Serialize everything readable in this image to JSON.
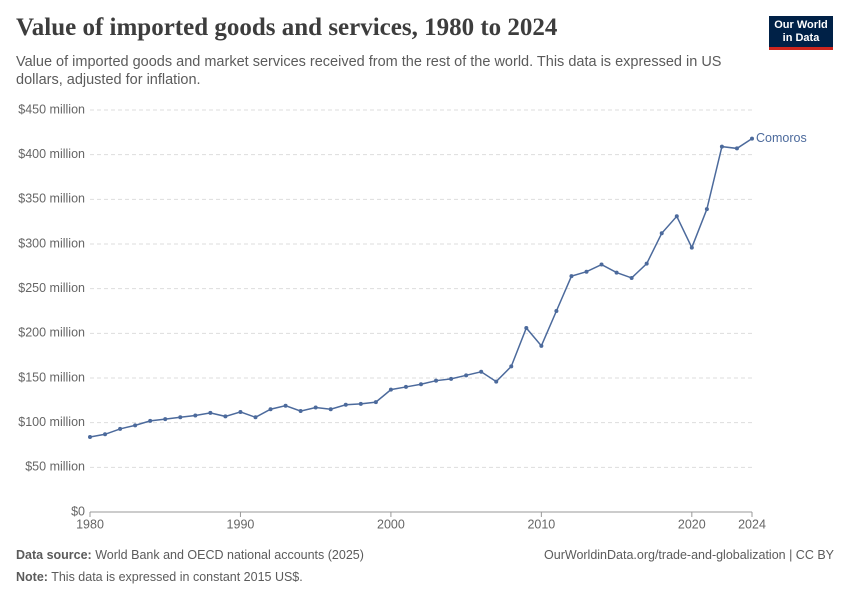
{
  "chart_data": {
    "type": "line",
    "title": "Value of imported goods and services, 1980 to 2024",
    "subtitle": "Value of imported goods and market services received from the rest of the world. This data is expressed in US dollars, adjusted for inflation.",
    "logo": [
      "Our World",
      "in Data"
    ],
    "source_label": "Data source:",
    "source": "World Bank and OECD national accounts (2025)",
    "url": "OurWorldinData.org/trade-and-globalization | CC BY",
    "note_label": "Note:",
    "note": "This data is expressed in constant 2015 US$.",
    "x": [
      1980,
      1981,
      1982,
      1983,
      1984,
      1985,
      1986,
      1987,
      1988,
      1989,
      1990,
      1991,
      1992,
      1993,
      1994,
      1995,
      1996,
      1997,
      1998,
      1999,
      2000,
      2001,
      2002,
      2003,
      2004,
      2005,
      2006,
      2007,
      2008,
      2009,
      2010,
      2011,
      2012,
      2013,
      2014,
      2015,
      2016,
      2017,
      2018,
      2019,
      2020,
      2021,
      2022,
      2023,
      2024
    ],
    "series": [
      {
        "name": "Comoros",
        "color": "#4c6a9c",
        "values": [
          84,
          87,
          93,
          97,
          102,
          104,
          106,
          108,
          111,
          107,
          112,
          106,
          115,
          119,
          113,
          117,
          115,
          120,
          121,
          123,
          137,
          140,
          143,
          147,
          149,
          153,
          157,
          146,
          163,
          206,
          186,
          225,
          264,
          269,
          277,
          268,
          262,
          278,
          312,
          331,
          296,
          339,
          409,
          407,
          418
        ]
      }
    ],
    "xlim": [
      1980,
      2024
    ],
    "xticks": [
      1980,
      1990,
      2000,
      2010,
      2020,
      2024
    ],
    "ylim": [
      0,
      450
    ],
    "yticks": [
      {
        "value": 0,
        "label": "$0"
      },
      {
        "value": 50,
        "label": "$50 million"
      },
      {
        "value": 100,
        "label": "$100 million"
      },
      {
        "value": 150,
        "label": "$150 million"
      },
      {
        "value": 200,
        "label": "$200 million"
      },
      {
        "value": 250,
        "label": "$250 million"
      },
      {
        "value": 300,
        "label": "$300 million"
      },
      {
        "value": 350,
        "label": "$350 million"
      },
      {
        "value": 400,
        "label": "$400 million"
      },
      {
        "value": 450,
        "label": "$450 million"
      }
    ],
    "grid": true
  }
}
